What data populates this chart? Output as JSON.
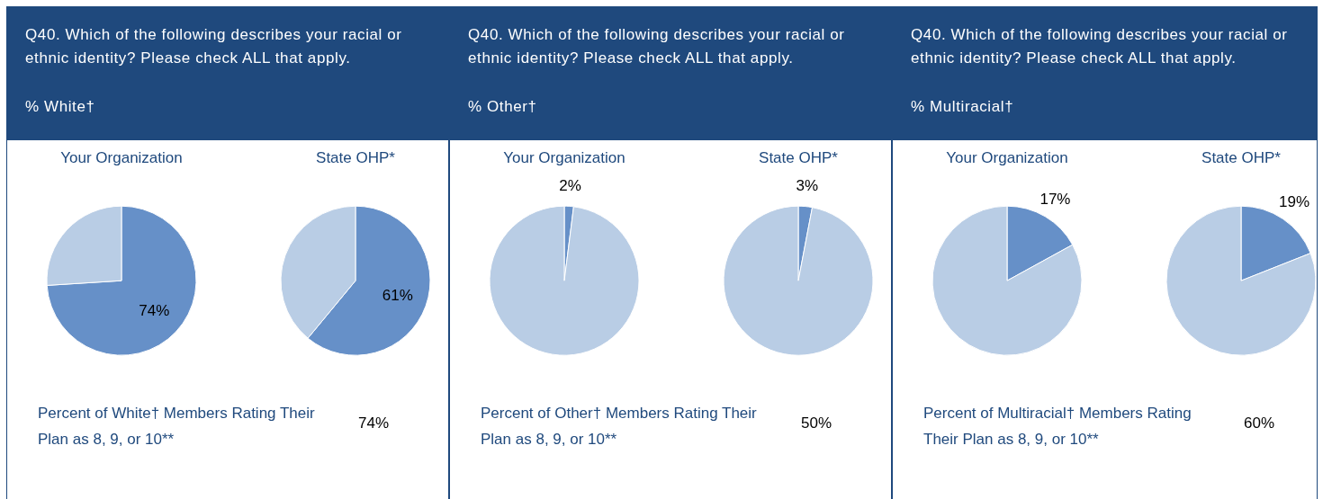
{
  "chart_data": [
    {
      "type": "other",
      "title": "Q40. Which of the following describes your racial or ethnic identity? Please check ALL that apply.",
      "subtitle": "% White†"
    },
    {
      "type": "pie",
      "title": "Your Organization",
      "categories": [
        null,
        null
      ],
      "values": [
        74,
        26
      ],
      "colors": [
        "#6690c8",
        "#b9cde5"
      ],
      "value_labels": [
        "74%",
        null
      ],
      "legend": false
    },
    {
      "type": "pie",
      "title": "State OHP*",
      "categories": [
        null,
        null
      ],
      "values": [
        61,
        39
      ],
      "colors": [
        "#6690c8",
        "#b9cde5"
      ],
      "value_labels": [
        "61%",
        null
      ],
      "legend": false
    },
    {
      "type": "other",
      "annotations": [
        "Percent of White† Members Rating Their Plan as 8, 9, or 10**",
        "74%"
      ]
    },
    {
      "type": "other",
      "title": "Q40. Which of the following describes your racial or ethnic identity? Please check ALL that apply.",
      "subtitle": "% Other†"
    },
    {
      "type": "pie",
      "title": "Your Organization",
      "categories": [
        null,
        null
      ],
      "values": [
        2,
        98
      ],
      "colors": [
        "#6690c8",
        "#b9cde5"
      ],
      "value_labels": [
        "2%",
        null
      ],
      "legend": false
    },
    {
      "type": "pie",
      "title": "State OHP*",
      "categories": [
        null,
        null
      ],
      "values": [
        3,
        97
      ],
      "colors": [
        "#6690c8",
        "#b9cde5"
      ],
      "value_labels": [
        "3%",
        null
      ],
      "legend": false
    },
    {
      "type": "other",
      "annotations": [
        "Percent of Other† Members Rating Their Plan as 8, 9, or 10**",
        "50%"
      ]
    },
    {
      "type": "other",
      "title": "Q40. Which of the following describes your racial or ethnic identity? Please check ALL that apply.",
      "subtitle": "% Multiracial†"
    },
    {
      "type": "pie",
      "title": "Your Organization",
      "categories": [
        null,
        null
      ],
      "values": [
        17,
        83
      ],
      "colors": [
        "#6690c8",
        "#b9cde5"
      ],
      "value_labels": [
        "17%",
        null
      ],
      "legend": false
    },
    {
      "type": "pie",
      "title": "State OHP*",
      "categories": [
        null,
        null
      ],
      "values": [
        19,
        81
      ],
      "colors": [
        "#6690c8",
        "#b9cde5"
      ],
      "value_labels": [
        "19%",
        null
      ],
      "legend": false
    },
    {
      "type": "other",
      "annotations": [
        "Percent of Multiracial† Members Rating Their Plan as 8, 9, or 10**",
        "60%"
      ]
    }
  ]
}
